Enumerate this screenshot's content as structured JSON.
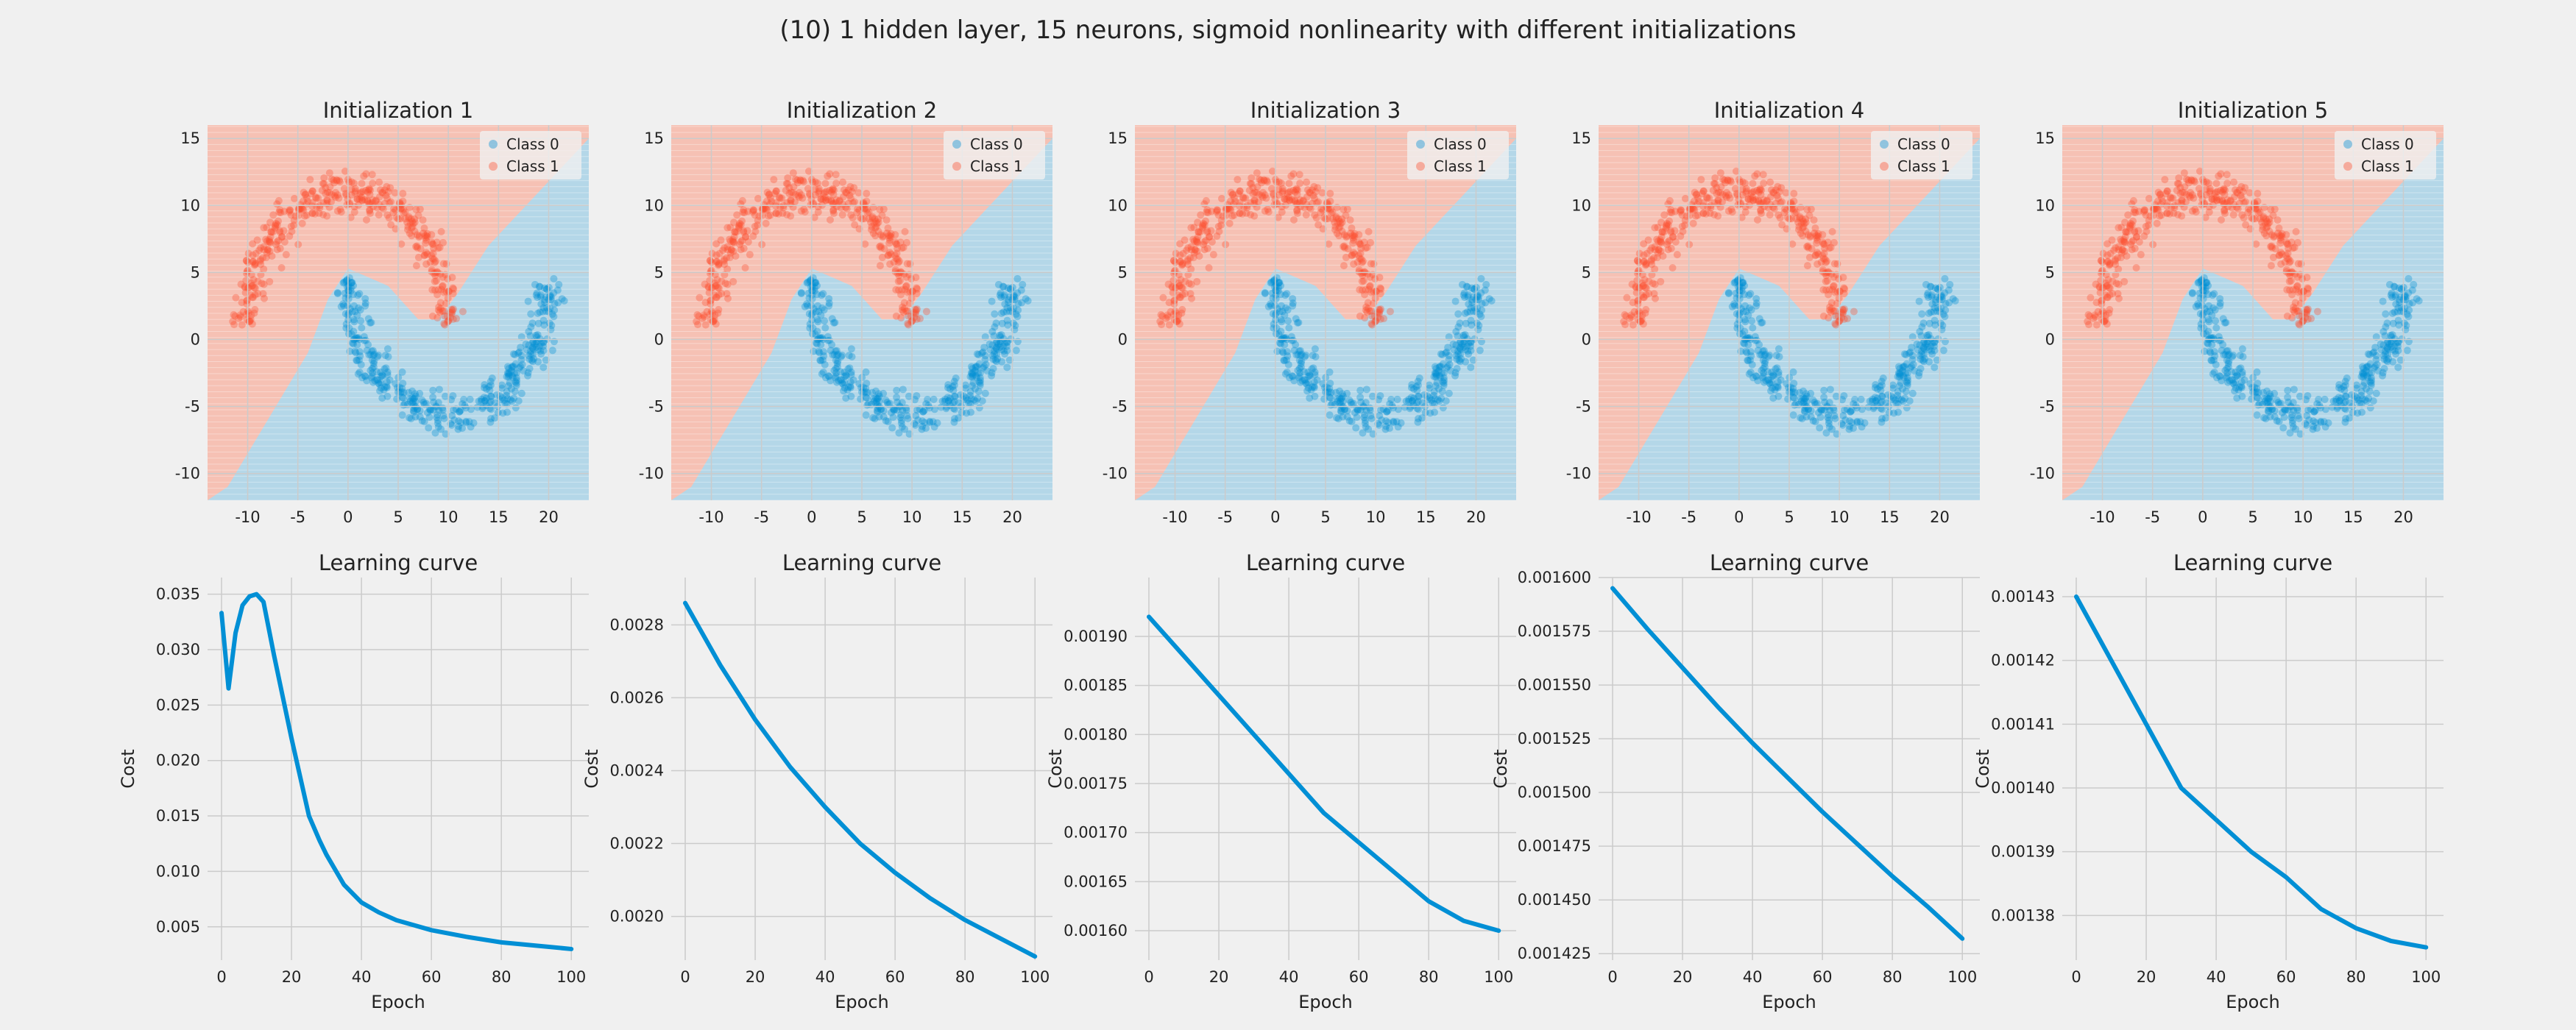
{
  "figure": {
    "suptitle": "(10) 1 hidden layer, 15 neurons, sigmoid nonlinearity with different initializations"
  },
  "colors": {
    "background": "#f0f0f0",
    "class0": "#008fd5",
    "class1": "#fc4f30",
    "region0": "#b4d7e8",
    "region1": "#f6c1b4",
    "curve": "#008fd5",
    "grid": "#cbcbcb"
  },
  "chart_data": [
    {
      "type": "scatter",
      "title": "Initialization 1",
      "legend": [
        "Class 0",
        "Class 1"
      ],
      "legend_position": "top-right",
      "xlim": [
        -14,
        24
      ],
      "ylim": [
        -12,
        16
      ],
      "xticks": [
        -10,
        -5,
        0,
        5,
        10,
        15,
        20
      ],
      "yticks": [
        -10,
        -5,
        0,
        5,
        10,
        15
      ],
      "boundary": [
        [
          0,
          5.3
        ],
        [
          4,
          4
        ],
        [
          7,
          1.5
        ],
        [
          9,
          1.5
        ],
        [
          11,
          3.5
        ],
        [
          14,
          7
        ],
        [
          24,
          15
        ]
      ],
      "grid": true
    },
    {
      "type": "scatter",
      "title": "Initialization 2",
      "legend": [
        "Class 0",
        "Class 1"
      ],
      "legend_position": "top-right",
      "xlim": [
        -14,
        24
      ],
      "ylim": [
        -12,
        16
      ],
      "xticks": [
        -10,
        -5,
        0,
        5,
        10,
        15,
        20
      ],
      "yticks": [
        -10,
        -5,
        0,
        5,
        10,
        15
      ],
      "boundary": [
        [
          0,
          5.3
        ],
        [
          4,
          4
        ],
        [
          7,
          1.5
        ],
        [
          9,
          1.5
        ],
        [
          11,
          3.5
        ],
        [
          14,
          7
        ],
        [
          24,
          15
        ]
      ],
      "grid": true
    },
    {
      "type": "scatter",
      "title": "Initialization 3",
      "legend": [
        "Class 0",
        "Class 1"
      ],
      "legend_position": "top-right",
      "xlim": [
        -14,
        24
      ],
      "ylim": [
        -12,
        16
      ],
      "xticks": [
        -10,
        -5,
        0,
        5,
        10,
        15,
        20
      ],
      "yticks": [
        -10,
        -5,
        0,
        5,
        10,
        15
      ],
      "boundary": [
        [
          0,
          5.3
        ],
        [
          4,
          4
        ],
        [
          7,
          1.5
        ],
        [
          9,
          1.5
        ],
        [
          11,
          3.5
        ],
        [
          14,
          7
        ],
        [
          24,
          15
        ]
      ],
      "grid": true
    },
    {
      "type": "scatter",
      "title": "Initialization 4",
      "legend": [
        "Class 0",
        "Class 1"
      ],
      "legend_position": "top-right",
      "xlim": [
        -14,
        24
      ],
      "ylim": [
        -12,
        16
      ],
      "xticks": [
        -10,
        -5,
        0,
        5,
        10,
        15,
        20
      ],
      "yticks": [
        -10,
        -5,
        0,
        5,
        10,
        15
      ],
      "boundary": [
        [
          0,
          5.3
        ],
        [
          4,
          4
        ],
        [
          7,
          1.5
        ],
        [
          9,
          1.5
        ],
        [
          11,
          3.5
        ],
        [
          14,
          7
        ],
        [
          24,
          15
        ]
      ],
      "grid": true
    },
    {
      "type": "scatter",
      "title": "Initialization 5",
      "legend": [
        "Class 0",
        "Class 1"
      ],
      "legend_position": "top-right",
      "xlim": [
        -14,
        24
      ],
      "ylim": [
        -12,
        16
      ],
      "xticks": [
        -10,
        -5,
        0,
        5,
        10,
        15,
        20
      ],
      "yticks": [
        -10,
        -5,
        0,
        5,
        10,
        15
      ],
      "boundary": [
        [
          0,
          5.3
        ],
        [
          4,
          4
        ],
        [
          7,
          1.5
        ],
        [
          9,
          1.5
        ],
        [
          11,
          3.5
        ],
        [
          14,
          7
        ],
        [
          24,
          15
        ]
      ],
      "grid": true
    },
    {
      "type": "line",
      "title": "Learning curve",
      "xlabel": "Epoch",
      "ylabel": "Cost",
      "xlim": [
        -4,
        105
      ],
      "ylim": [
        0.002,
        0.0365
      ],
      "xticks": [
        0,
        20,
        40,
        60,
        80,
        100
      ],
      "yticks": [
        0.005,
        0.01,
        0.015,
        0.02,
        0.025,
        0.03,
        0.035
      ],
      "ytick_labels": [
        "0.005",
        "0.010",
        "0.015",
        "0.020",
        "0.025",
        "0.030",
        "0.035"
      ],
      "x": [
        0,
        2,
        4,
        6,
        8,
        10,
        12,
        15,
        20,
        25,
        28,
        30,
        35,
        40,
        45,
        50,
        60,
        70,
        80,
        90,
        100
      ],
      "y": [
        0.0333,
        0.0265,
        0.0315,
        0.034,
        0.0348,
        0.035,
        0.0343,
        0.0295,
        0.022,
        0.015,
        0.0128,
        0.0115,
        0.0088,
        0.0072,
        0.0063,
        0.0056,
        0.0047,
        0.0041,
        0.0036,
        0.0033,
        0.003
      ],
      "grid": true
    },
    {
      "type": "line",
      "title": "Learning curve",
      "xlabel": "Epoch",
      "ylabel": "Cost",
      "xlim": [
        -4,
        105
      ],
      "ylim": [
        0.00188,
        0.00293
      ],
      "xticks": [
        0,
        20,
        40,
        60,
        80,
        100
      ],
      "yticks": [
        0.002,
        0.0022,
        0.0024,
        0.0026,
        0.0028
      ],
      "ytick_labels": [
        "0.0020",
        "0.0022",
        "0.0024",
        "0.0026",
        "0.0028"
      ],
      "x": [
        0,
        10,
        20,
        30,
        40,
        50,
        60,
        70,
        80,
        90,
        100
      ],
      "y": [
        0.00286,
        0.00269,
        0.00254,
        0.00241,
        0.0023,
        0.0022,
        0.00212,
        0.00205,
        0.00199,
        0.00194,
        0.00189
      ],
      "grid": true
    },
    {
      "type": "line",
      "title": "Learning curve",
      "xlabel": "Epoch",
      "ylabel": "Cost",
      "xlim": [
        -4,
        105
      ],
      "ylim": [
        0.00157,
        0.00196
      ],
      "xticks": [
        0,
        20,
        40,
        60,
        80,
        100
      ],
      "yticks": [
        0.0016,
        0.00165,
        0.0017,
        0.00175,
        0.0018,
        0.00185,
        0.0019
      ],
      "ytick_labels": [
        "0.00160",
        "0.00165",
        "0.00170",
        "0.00175",
        "0.00180",
        "0.00185",
        "0.00190"
      ],
      "x": [
        0,
        10,
        20,
        30,
        40,
        50,
        60,
        70,
        80,
        90,
        100
      ],
      "y": [
        0.00192,
        0.00188,
        0.00184,
        0.0018,
        0.00176,
        0.00172,
        0.00169,
        0.00166,
        0.00163,
        0.00161,
        0.0016
      ],
      "grid": true
    },
    {
      "type": "line",
      "title": "Learning curve",
      "xlabel": "Epoch",
      "ylabel": "Cost",
      "xlim": [
        -4,
        105
      ],
      "ylim": [
        0.001422,
        0.0016
      ],
      "xticks": [
        0,
        20,
        40,
        60,
        80,
        100
      ],
      "yticks": [
        0.001425,
        0.00145,
        0.001475,
        0.0015,
        0.001525,
        0.00155,
        0.001575,
        0.0016
      ],
      "ytick_labels": [
        "0.001425",
        "0.001450",
        "0.001475",
        "0.001500",
        "0.001525",
        "0.001550",
        "0.001575",
        "0.001600"
      ],
      "x": [
        0,
        10,
        20,
        30,
        40,
        50,
        60,
        70,
        80,
        90,
        100
      ],
      "y": [
        0.001595,
        0.001576,
        0.001558,
        0.00154,
        0.001523,
        0.001507,
        0.001491,
        0.001476,
        0.001461,
        0.001447,
        0.001432
      ],
      "grid": true
    },
    {
      "type": "line",
      "title": "Learning curve",
      "xlabel": "Epoch",
      "ylabel": "Cost",
      "xlim": [
        -4,
        105
      ],
      "ylim": [
        0.001373,
        0.001433
      ],
      "xticks": [
        0,
        20,
        40,
        60,
        80,
        100
      ],
      "yticks": [
        0.00138,
        0.00139,
        0.0014,
        0.00141,
        0.00142,
        0.00143
      ],
      "ytick_labels": [
        "0.00138",
        "0.00139",
        "0.00140",
        "0.00141",
        "0.00142",
        "0.00143"
      ],
      "x": [
        0,
        10,
        20,
        30,
        40,
        50,
        60,
        70,
        80,
        90,
        100
      ],
      "y": [
        0.00143,
        0.00142,
        0.00141,
        0.0014,
        0.001395,
        0.00139,
        0.001386,
        0.001381,
        0.001378,
        0.001376,
        0.001375
      ],
      "grid": true
    }
  ]
}
